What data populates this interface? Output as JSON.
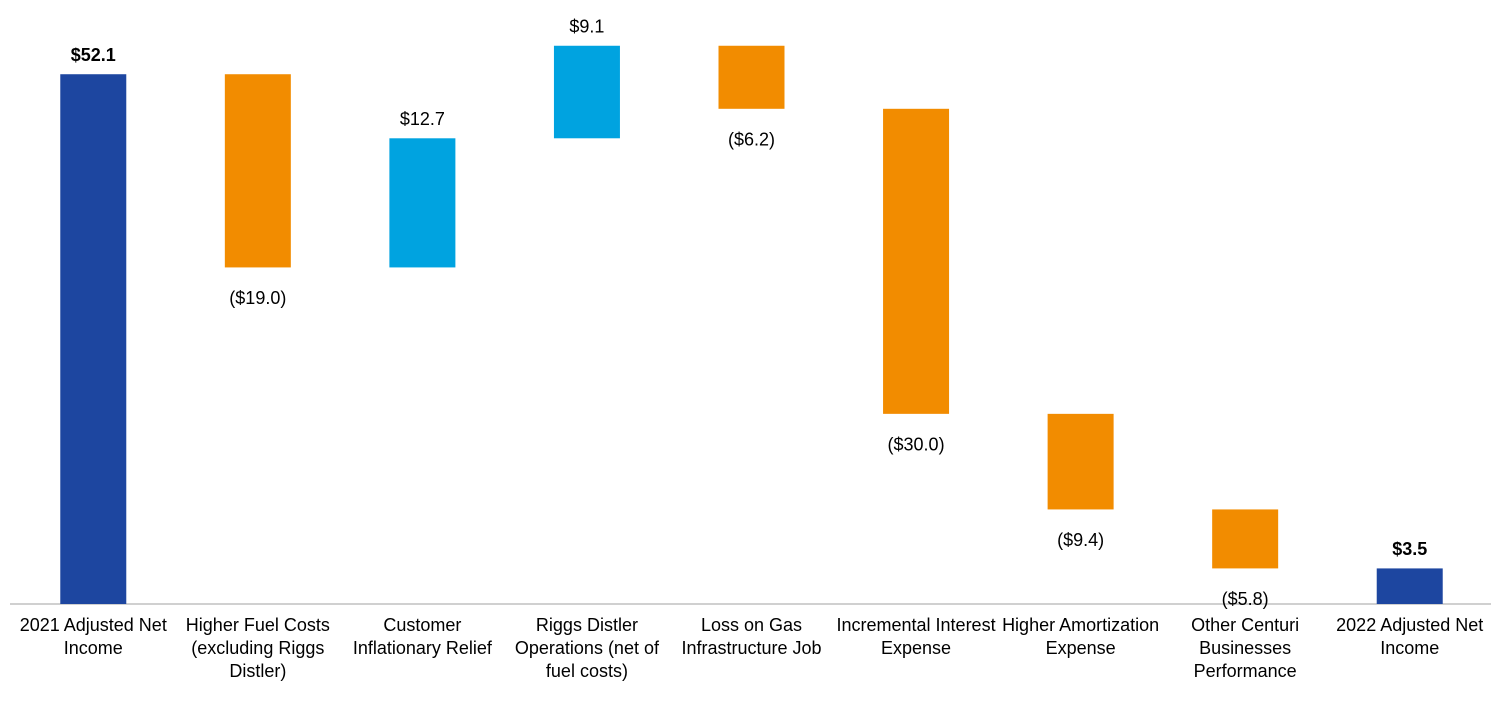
{
  "chart_data": {
    "type": "waterfall",
    "categories": [
      "2021 Adjusted Net Income",
      "Higher Fuel Costs (excluding Riggs Distler)",
      "Customer Inflationary Relief",
      "Riggs Distler Operations (net of fuel costs)",
      "Loss on Gas Infrastructure Job",
      "Incremental Interest Expense",
      "Higher Amortization Expense",
      "Other Centuri Businesses Performance",
      "2022 Adjusted Net Income"
    ],
    "values": [
      52.1,
      -19.0,
      12.7,
      9.1,
      -6.2,
      -30.0,
      -9.4,
      -5.8,
      3.5
    ],
    "value_labels": [
      "$52.1",
      "($19.0)",
      "$12.7",
      "$9.1",
      "($6.2)",
      "($30.0)",
      "($9.4)",
      "($5.8)",
      "$3.5"
    ],
    "colors": [
      "#1d46a0",
      "#f28c00",
      "#00a3e0",
      "#00a3e0",
      "#f28c00",
      "#f28c00",
      "#f28c00",
      "#f28c00",
      "#1d46a0"
    ],
    "ylim": [
      0,
      59.4
    ]
  }
}
